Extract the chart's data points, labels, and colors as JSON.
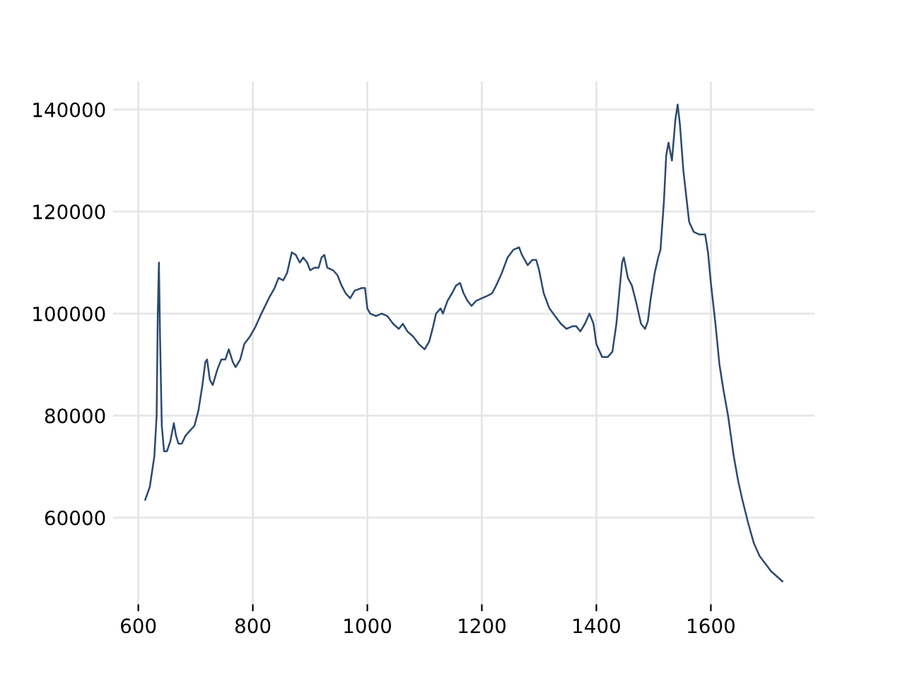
{
  "chart_data": {
    "type": "line",
    "color": "#2b4a6f",
    "grid": true,
    "marker": "none",
    "line_style": "solid",
    "xlim": [
      556,
      1781
    ],
    "xticks": [
      600,
      800,
      1000,
      1200,
      1400,
      1600
    ],
    "ylim": [
      43000,
      145500
    ],
    "yticks": [
      60000,
      80000,
      100000,
      120000,
      140000
    ],
    "x": [
      612,
      620,
      628,
      632,
      634,
      636,
      638,
      641,
      645,
      650,
      656,
      662,
      666,
      670,
      676,
      682,
      690,
      698,
      705,
      712,
      717,
      720,
      725,
      730,
      738,
      745,
      752,
      758,
      765,
      770,
      778,
      785,
      795,
      805,
      815,
      828,
      838,
      845,
      853,
      860,
      868,
      875,
      882,
      888,
      895,
      900,
      908,
      915,
      920,
      925,
      930,
      940,
      948,
      955,
      962,
      970,
      978,
      990,
      996,
      1000,
      1005,
      1015,
      1025,
      1035,
      1045,
      1055,
      1062,
      1070,
      1080,
      1090,
      1100,
      1108,
      1115,
      1120,
      1128,
      1132,
      1140,
      1148,
      1155,
      1162,
      1168,
      1175,
      1182,
      1190,
      1200,
      1210,
      1218,
      1225,
      1235,
      1245,
      1255,
      1265,
      1270,
      1280,
      1288,
      1295,
      1300,
      1308,
      1318,
      1328,
      1338,
      1348,
      1358,
      1365,
      1372,
      1380,
      1388,
      1395,
      1400,
      1410,
      1420,
      1428,
      1435,
      1440,
      1445,
      1448,
      1455,
      1462,
      1470,
      1478,
      1485,
      1490,
      1495,
      1502,
      1508,
      1512,
      1518,
      1522,
      1526,
      1532,
      1538,
      1542,
      1546,
      1552,
      1558,
      1562,
      1570,
      1580,
      1590,
      1595,
      1600,
      1608,
      1615,
      1622,
      1630,
      1640,
      1648,
      1655,
      1665,
      1675,
      1685,
      1695,
      1705,
      1715,
      1725
    ],
    "values": [
      63500,
      66000,
      72000,
      80000,
      100000,
      110000,
      95000,
      78000,
      73000,
      73000,
      75000,
      78500,
      76000,
      74500,
      74500,
      76000,
      77000,
      78000,
      81000,
      86000,
      90500,
      91000,
      87000,
      86000,
      89000,
      91000,
      91000,
      93000,
      90500,
      89500,
      91000,
      94000,
      95500,
      97500,
      100000,
      103000,
      105000,
      107000,
      106500,
      108000,
      112000,
      111500,
      110000,
      111000,
      110000,
      108500,
      109000,
      109000,
      111000,
      111500,
      109000,
      108500,
      107500,
      105500,
      104000,
      103000,
      104500,
      105000,
      105000,
      101000,
      100000,
      99500,
      100000,
      99500,
      98000,
      97000,
      98000,
      96500,
      95500,
      94000,
      93000,
      94500,
      97500,
      100000,
      101000,
      100000,
      102500,
      104000,
      105500,
      106000,
      104000,
      102500,
      101500,
      102500,
      103000,
      103500,
      104000,
      105500,
      108000,
      111000,
      112500,
      113000,
      111500,
      109500,
      110500,
      110500,
      108500,
      104000,
      101000,
      99500,
      98000,
      97000,
      97500,
      97500,
      96500,
      98000,
      100000,
      98000,
      94000,
      91500,
      91500,
      92500,
      98000,
      104000,
      110000,
      111000,
      107000,
      105500,
      102000,
      98000,
      97000,
      98500,
      103000,
      108000,
      111000,
      112500,
      122000,
      131000,
      133500,
      130000,
      138000,
      141000,
      137000,
      128000,
      122000,
      118000,
      116000,
      115500,
      115500,
      112000,
      106000,
      98000,
      90000,
      85000,
      80000,
      72000,
      67000,
      63500,
      59000,
      55000,
      52500,
      51000,
      49500,
      48500,
      47500
    ]
  }
}
